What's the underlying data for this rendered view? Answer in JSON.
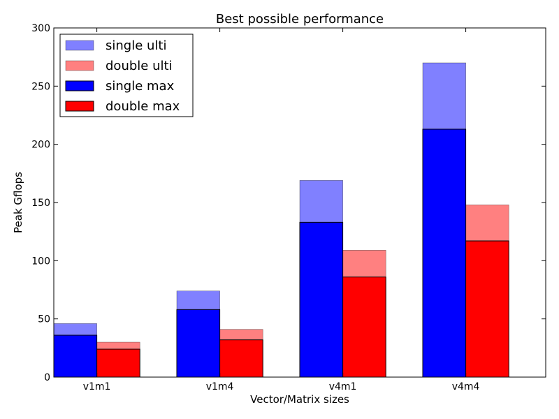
{
  "chart_data": {
    "type": "bar",
    "title": "Best possible performance",
    "xlabel": "Vector/Matrix sizes",
    "ylabel": "Peak Gflops",
    "categories": [
      "v1m1",
      "v1m4",
      "v4m1",
      "v4m4"
    ],
    "ylim": [
      0,
      300
    ],
    "yticks": [
      0,
      50,
      100,
      150,
      200,
      250,
      300
    ],
    "grid": false,
    "legend_position": "top-left",
    "series": [
      {
        "name": "single ulti",
        "group": "single",
        "layer": "ulti",
        "color": "#8080ff",
        "values": [
          46,
          74,
          169,
          270
        ]
      },
      {
        "name": "double ulti",
        "group": "double",
        "layer": "ulti",
        "color": "#ff8080",
        "values": [
          30,
          41,
          109,
          148
        ]
      },
      {
        "name": "single max",
        "group": "single",
        "layer": "max",
        "color": "#0000ff",
        "values": [
          36,
          58,
          133,
          213
        ]
      },
      {
        "name": "double max",
        "group": "double",
        "layer": "max",
        "color": "#ff0000",
        "values": [
          24,
          32,
          86,
          117
        ]
      }
    ]
  }
}
